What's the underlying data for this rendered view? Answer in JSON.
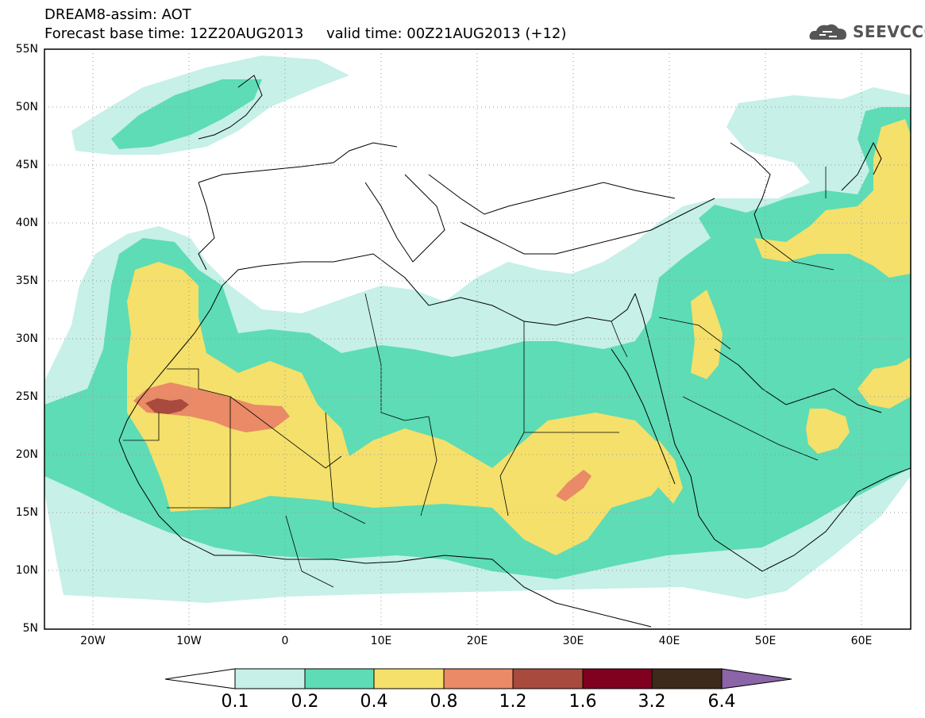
{
  "title": {
    "line1": "DREAM8-assim: AOT",
    "line2": "Forecast base time: 12Z20AUG2013     valid time: 00Z21AUG2013 (+12)"
  },
  "logo": {
    "text": "SEEVCCC",
    "icon": "cloud-icon"
  },
  "map": {
    "lat_labels": [
      "55N",
      "50N",
      "45N",
      "40N",
      "35N",
      "30N",
      "25N",
      "20N",
      "15N",
      "10N",
      "5N"
    ],
    "lon_labels": [
      "20W",
      "10W",
      "0",
      "10E",
      "20E",
      "30E",
      "40E",
      "50E",
      "60E"
    ],
    "lon_range": [
      -25,
      65
    ],
    "lat_range": [
      5,
      55
    ],
    "grid": "dotted"
  },
  "colorbar": {
    "labels": [
      "0.1",
      "0.2",
      "0.4",
      "0.8",
      "1.2",
      "1.6",
      "3.2",
      "6.4"
    ],
    "colors": [
      "#ffffff",
      "#c6f0e8",
      "#5ddcb5",
      "#f4e06b",
      "#ea8a66",
      "#a84a3e",
      "#800020",
      "#3e2a1a",
      "#8c64a8"
    ]
  }
}
